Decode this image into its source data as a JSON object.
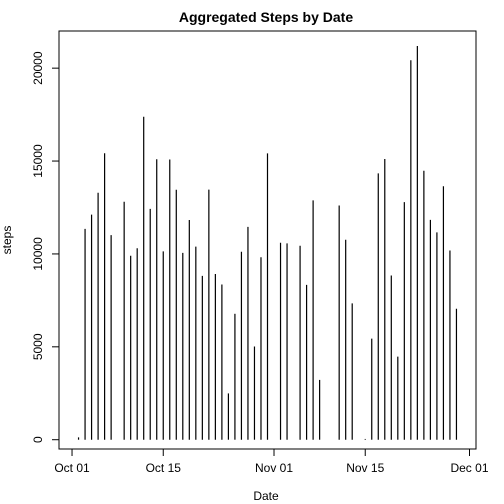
{
  "chart_data": {
    "type": "bar",
    "style": "histogram-lines",
    "title": "Aggregated Steps by Date",
    "xlabel": "Date",
    "ylabel": "steps",
    "xlim": [
      "2012-09-29",
      "2012-12-02"
    ],
    "ylim": [
      -500,
      22000
    ],
    "grid": false,
    "legend": "none",
    "x_ticks": [
      {
        "date": "2012-10-01",
        "label": "Oct 01"
      },
      {
        "date": "2012-10-15",
        "label": "Oct 15"
      },
      {
        "date": "2012-11-01",
        "label": "Nov 01"
      },
      {
        "date": "2012-11-15",
        "label": "Nov 15"
      },
      {
        "date": "2012-12-01",
        "label": "Dec 01"
      }
    ],
    "y_ticks": [
      0,
      5000,
      10000,
      15000,
      20000
    ],
    "x": [
      "2012-10-02",
      "2012-10-03",
      "2012-10-04",
      "2012-10-05",
      "2012-10-06",
      "2012-10-07",
      "2012-10-09",
      "2012-10-10",
      "2012-10-11",
      "2012-10-12",
      "2012-10-13",
      "2012-10-14",
      "2012-10-15",
      "2012-10-16",
      "2012-10-17",
      "2012-10-18",
      "2012-10-19",
      "2012-10-20",
      "2012-10-21",
      "2012-10-22",
      "2012-10-23",
      "2012-10-24",
      "2012-10-25",
      "2012-10-26",
      "2012-10-27",
      "2012-10-28",
      "2012-10-29",
      "2012-10-30",
      "2012-10-31",
      "2012-11-02",
      "2012-11-03",
      "2012-11-05",
      "2012-11-06",
      "2012-11-07",
      "2012-11-08",
      "2012-11-11",
      "2012-11-12",
      "2012-11-13",
      "2012-11-15",
      "2012-11-16",
      "2012-11-17",
      "2012-11-18",
      "2012-11-19",
      "2012-11-20",
      "2012-11-21",
      "2012-11-22",
      "2012-11-23",
      "2012-11-24",
      "2012-11-25",
      "2012-11-26",
      "2012-11-27",
      "2012-11-28",
      "2012-11-29"
    ],
    "values": [
      126,
      11352,
      12116,
      13294,
      15420,
      11015,
      12811,
      9900,
      10304,
      17382,
      12426,
      15098,
      10139,
      15084,
      13452,
      10056,
      11829,
      10395,
      8821,
      13460,
      8918,
      8355,
      2492,
      6778,
      10119,
      11458,
      5018,
      9819,
      15414,
      10600,
      10571,
      10439,
      8334,
      12883,
      3219,
      12608,
      10765,
      7336,
      41,
      5441,
      14339,
      15110,
      8841,
      4472,
      12787,
      20427,
      21194,
      14478,
      11834,
      11162,
      13646,
      10183,
      7047
    ]
  }
}
